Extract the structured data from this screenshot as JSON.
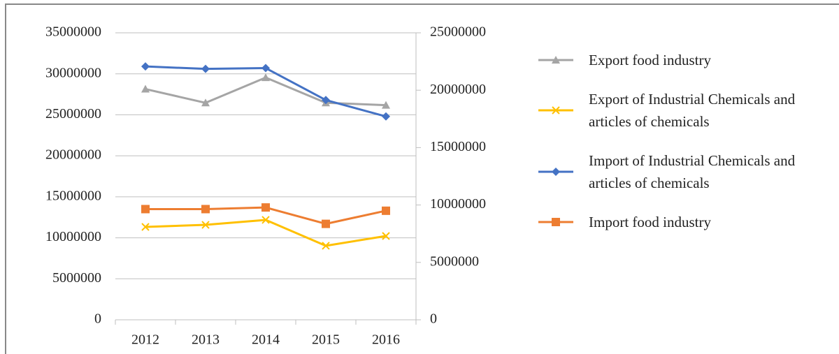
{
  "chart_data": {
    "type": "line",
    "categories": [
      "2012",
      "2013",
      "2014",
      "2015",
      "2016"
    ],
    "ylim": [
      0,
      35000000
    ],
    "yticks": [
      0,
      5000000,
      10000000,
      15000000,
      20000000,
      25000000,
      30000000,
      35000000
    ],
    "y2lim": [
      0,
      25000000
    ],
    "y2ticks": [
      0,
      5000000,
      10000000,
      15000000,
      20000000,
      25000000
    ],
    "grid": true,
    "legend": "right",
    "series": [
      {
        "name": "Export food industry",
        "color": "#a5a5a5",
        "marker": "triangle",
        "axis": "y2",
        "values": [
          20100000,
          18900000,
          21100000,
          18900000,
          18700000
        ]
      },
      {
        "name": "Export of Industrial Chemicals and articles of chemicals",
        "color": "#ffc000",
        "marker": "x",
        "axis": "y2",
        "values": [
          8090000,
          8270000,
          8700000,
          6450000,
          7300000
        ]
      },
      {
        "name": "Import of Industrial Chemicals and articles of chemicals",
        "color": "#4472c4",
        "marker": "diamond",
        "values": [
          30900000,
          30600000,
          30700000,
          26800000,
          24800000
        ]
      },
      {
        "name": "Import food industry",
        "color": "#ed7d31",
        "marker": "square",
        "values": [
          13500000,
          13500000,
          13700000,
          11700000,
          13300000
        ]
      }
    ]
  }
}
